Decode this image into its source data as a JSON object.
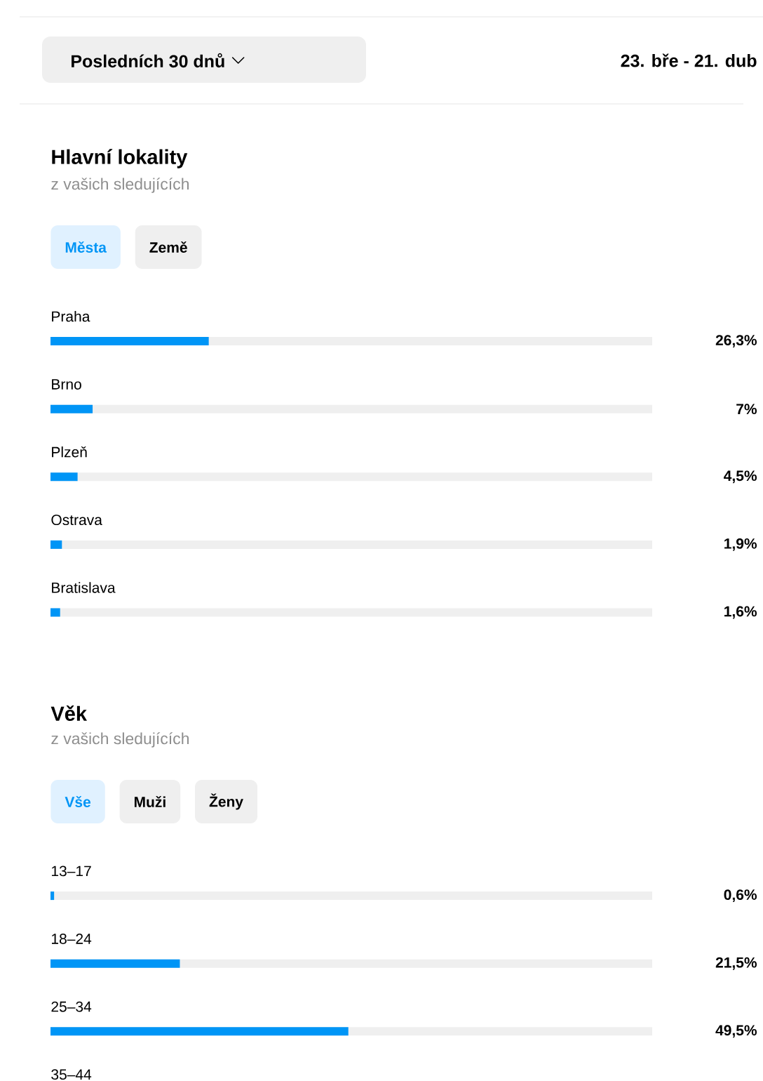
{
  "chart_data": [
    {
      "type": "other",
      "annotations": [
        "Posledních 30 dnů",
        "23. bře - 21. dub"
      ]
    },
    {
      "type": "bar",
      "orientation": "horizontal",
      "title": "Hlavní lokality",
      "subtitle": "z vašich sledujících",
      "annotations": [
        "Města",
        "Země"
      ],
      "categories": [
        "Praha",
        "Brno",
        "Plzeň",
        "Ostrava",
        "Bratislava"
      ],
      "values": [
        26.3,
        7,
        4.5,
        1.9,
        1.6
      ],
      "value_labels": [
        "26,3%",
        "7%",
        "4,5%",
        "1,9%",
        "1,6%"
      ],
      "color": "#0095f6",
      "xlim": [
        0,
        100
      ]
    },
    {
      "type": "bar",
      "orientation": "horizontal",
      "title": "Věk",
      "subtitle": "z vašich sledujících",
      "annotations": [
        "Vše",
        "Muži",
        "Ženy"
      ],
      "categories": [
        "13–17",
        "18–24",
        "25–34",
        "35–44"
      ],
      "values": [
        0.6,
        21.5,
        49.5,
        null
      ],
      "value_labels": [
        "0,6%",
        "21,5%",
        "49,5%",
        null
      ],
      "color": "#0095f6",
      "xlim": [
        0,
        100
      ]
    }
  ]
}
